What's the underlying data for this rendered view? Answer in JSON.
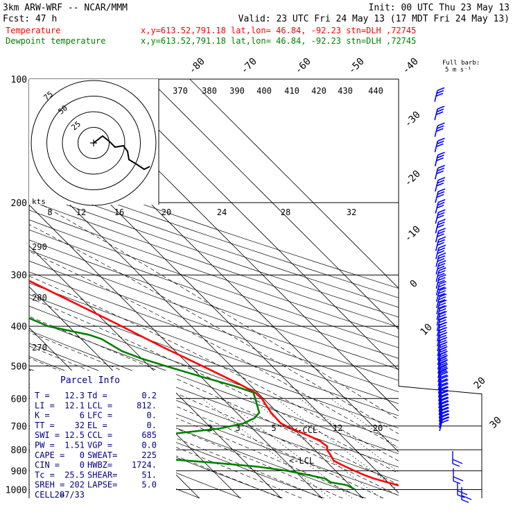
{
  "header": {
    "line1_left": "3km ARW-WRF -- NCAR/MMM",
    "line1_right": "Init: 00 UTC Thu 23 May 13",
    "line2_left": "Fcst:    47 h",
    "line2_right": "Valid: 23 UTC Fri 24 May 13 (17 MDT Fri 24 May 13)",
    "temp_label": "Temperature",
    "temp_info": "x,y=613.52,791.18   lat,lon= 46.84, -92.23   stn=DLH ,72745",
    "dew_label": "Dewpoint temperature",
    "dew_info": "x,y=613.52,791.18   lat,lon= 46.84, -92.23   stn=DLH ,72745"
  },
  "colors": {
    "temperature": "#ff0000",
    "dewpoint": "#008000",
    "axes": "#000000",
    "parcel_text": "#000080",
    "wind_barbs": "#0000ff"
  },
  "wind_barb_caption": [
    "Full barb:",
    "5 m s⁻¹"
  ],
  "hodograph": {
    "units_label": "kts",
    "ring_labels": [
      "25",
      "50",
      "75"
    ]
  },
  "parcel_info": {
    "title": "Parcel Info",
    "rows": [
      [
        "T  =",
        "12.3",
        "Td =",
        "0.2"
      ],
      [
        "LI =",
        "12.1",
        "LCL =",
        "812."
      ],
      [
        "K  =",
        "6",
        "LFC =",
        "0."
      ],
      [
        "TT =",
        "32",
        "EL  =",
        "0."
      ],
      [
        "SWI =",
        "12.5",
        "CCL =",
        "685"
      ],
      [
        "PW =",
        "1.51",
        "VGP =",
        "0.0"
      ],
      [
        "CAPE =",
        "0",
        "SWEAT=",
        "225"
      ],
      [
        "CIN =",
        "0",
        "HWBZ=",
        "1724."
      ],
      [
        "Tc =",
        "25.5",
        "SHEAR=",
        "51."
      ],
      [
        "SREH =",
        "202",
        "LAPSE=",
        "5.0"
      ],
      [
        "CELL =",
        "287/33",
        "",
        ""
      ]
    ]
  },
  "chart_data": {
    "type": "line",
    "diagram": "skew-T log-P",
    "y_axis_ticks": [
      "100",
      "200",
      "300",
      "400",
      "500",
      "600",
      "700",
      "800",
      "900",
      "1000"
    ],
    "y_unit": "hPa",
    "isotherm_labels": [
      "-80",
      "-70",
      "-60",
      "-50",
      "-40",
      "-30",
      "-20",
      "-10",
      "0",
      "10",
      "20",
      "30",
      "40"
    ],
    "dry_adiabat_labels": [
      "370",
      "380",
      "390",
      "400",
      "410",
      "420",
      "430",
      "440",
      "290",
      "280",
      "270"
    ],
    "mixing_ratio_labels": [
      "8",
      "12",
      "16",
      "20",
      "24",
      "28",
      "32",
      "2",
      "3",
      "5",
      "12",
      "20"
    ],
    "lcl_labels": [
      "<-CCL",
      "<-LCL"
    ],
    "series": [
      {
        "name": "Temperature",
        "points": [
          [
            1000,
            12.3
          ],
          [
            985,
            12.5
          ],
          [
            970,
            11.0
          ],
          [
            955,
            9.2
          ],
          [
            940,
            7.5
          ],
          [
            925,
            6.2
          ],
          [
            900,
            4.6
          ],
          [
            870,
            2.9
          ],
          [
            850,
            2.0
          ],
          [
            825,
            2.6
          ],
          [
            800,
            3.0
          ],
          [
            785,
            3.9
          ],
          [
            760,
            3.4
          ],
          [
            740,
            2.0
          ],
          [
            710,
            -0.5
          ],
          [
            690,
            -1.8
          ],
          [
            650,
            -1.6
          ],
          [
            600,
            -0.4
          ],
          [
            580,
            -0.6
          ],
          [
            550,
            -2.6
          ],
          [
            500,
            -7
          ],
          [
            450,
            -12
          ],
          [
            400,
            -17
          ],
          [
            350,
            -23
          ],
          [
            300,
            -30
          ],
          [
            250,
            -39
          ],
          [
            225,
            -44
          ],
          [
            205,
            -49
          ],
          [
            190,
            -52
          ],
          [
            170,
            -54
          ],
          [
            150,
            -55
          ],
          [
            130,
            -57
          ],
          [
            112,
            -58
          ],
          [
            100,
            -59
          ]
        ]
      },
      {
        "name": "Dewpoint temperature",
        "points": [
          [
            1000,
            0.2
          ],
          [
            975,
            -0.8
          ],
          [
            960,
            -4
          ],
          [
            940,
            -4.5
          ],
          [
            920,
            -8
          ],
          [
            900,
            -12
          ],
          [
            880,
            -18
          ],
          [
            860,
            -28
          ],
          [
            840,
            -40
          ],
          [
            820,
            -55
          ],
          [
            810,
            -70
          ],
          [
            800,
            -82
          ],
          [
            790,
            -80
          ],
          [
            770,
            -65
          ],
          [
            750,
            -45
          ],
          [
            730,
            -30
          ],
          [
            710,
            -18
          ],
          [
            690,
            -11
          ],
          [
            670,
            -7
          ],
          [
            650,
            -4.5
          ],
          [
            600,
            -2
          ],
          [
            580,
            -1
          ],
          [
            560,
            -4
          ],
          [
            530,
            -10
          ],
          [
            500,
            -16
          ],
          [
            480,
            -20
          ],
          [
            460,
            -23
          ],
          [
            430,
            -25
          ],
          [
            420,
            -27
          ],
          [
            400,
            -35
          ],
          [
            380,
            -38
          ],
          [
            340,
            -43
          ],
          [
            320,
            -47
          ],
          [
            300,
            -52
          ],
          [
            270,
            -52
          ],
          [
            250,
            -55
          ],
          [
            220,
            -59
          ],
          [
            200,
            -62
          ],
          [
            170,
            -67
          ],
          [
            150,
            -72
          ],
          [
            130,
            -78
          ],
          [
            110,
            -79
          ],
          [
            100,
            -80
          ]
        ]
      }
    ]
  }
}
